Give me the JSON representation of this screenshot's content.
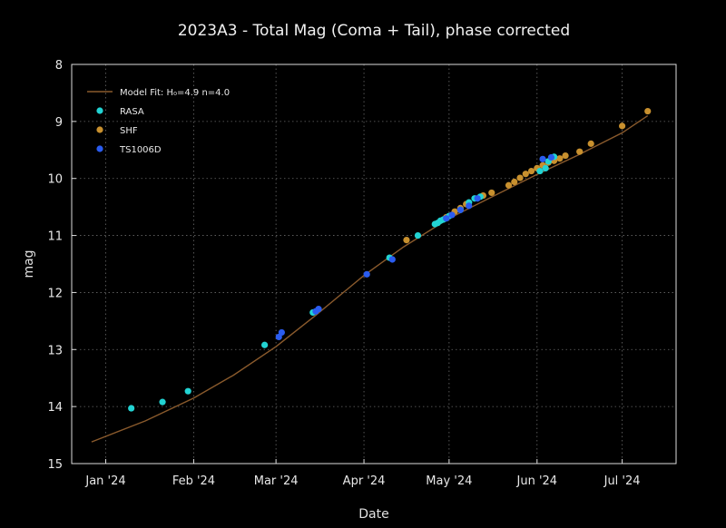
{
  "chart_data": {
    "type": "scatter",
    "title": "2023A3 - Total Mag (Coma + Tail), phase corrected",
    "xlabel": "Date",
    "ylabel": "mag",
    "x_axis_type": "date",
    "xlim": [
      "2023-12-20",
      "2024-07-20"
    ],
    "ylim": [
      15,
      8
    ],
    "y_inverted": true,
    "xticks": [
      {
        "date": "2024-01-01",
        "label": "Jan '24"
      },
      {
        "date": "2024-02-01",
        "label": "Feb '24"
      },
      {
        "date": "2024-03-01",
        "label": "Mar '24"
      },
      {
        "date": "2024-04-01",
        "label": "Apr '24"
      },
      {
        "date": "2024-05-01",
        "label": "May '24"
      },
      {
        "date": "2024-06-01",
        "label": "Jun '24"
      },
      {
        "date": "2024-07-01",
        "label": "Jul '24"
      }
    ],
    "yticks": [
      8,
      9,
      10,
      11,
      12,
      13,
      14,
      15
    ],
    "grid": true,
    "grid_style": "dotted",
    "legend_position": "top-left",
    "colors": {
      "background": "#000000",
      "axes": "#dddddd",
      "grid": "#6a6a6a",
      "model": "#8a5a2c",
      "RASA": "#22d3d3",
      "SHF": "#c8902e",
      "TS1006D": "#2a5cf0"
    },
    "model_fit": {
      "name": "Model Fit: H₀=4.9 n=4.0",
      "x": [
        "2023-12-27",
        "2024-01-15",
        "2024-02-01",
        "2024-02-15",
        "2024-03-01",
        "2024-03-15",
        "2024-04-01",
        "2024-04-15",
        "2024-05-01",
        "2024-05-15",
        "2024-06-01",
        "2024-06-15",
        "2024-07-01",
        "2024-07-10"
      ],
      "y": [
        14.62,
        14.25,
        13.85,
        13.45,
        12.95,
        12.4,
        11.7,
        11.2,
        10.7,
        10.35,
        9.93,
        9.6,
        9.2,
        8.9
      ]
    },
    "series": [
      {
        "name": "RASA",
        "x": [
          "2024-01-10",
          "2024-01-21",
          "2024-01-30",
          "2024-02-26",
          "2024-03-14",
          "2024-04-10",
          "2024-04-20",
          "2024-04-26",
          "2024-04-27",
          "2024-04-28",
          "2024-04-29",
          "2024-05-01",
          "2024-05-05",
          "2024-05-08",
          "2024-05-10",
          "2024-05-12",
          "2024-06-02",
          "2024-06-04",
          "2024-06-05",
          "2024-06-07"
        ],
        "y": [
          14.03,
          13.92,
          13.73,
          12.92,
          12.35,
          11.39,
          11.0,
          10.8,
          10.78,
          10.74,
          10.72,
          10.66,
          10.55,
          10.42,
          10.35,
          10.32,
          9.87,
          9.82,
          9.7,
          9.62
        ]
      },
      {
        "name": "SHF",
        "x": [
          "2024-04-16",
          "2024-04-30",
          "2024-05-03",
          "2024-05-05",
          "2024-05-07",
          "2024-05-13",
          "2024-05-16",
          "2024-05-22",
          "2024-05-24",
          "2024-05-26",
          "2024-05-28",
          "2024-05-30",
          "2024-06-01",
          "2024-06-03",
          "2024-06-05",
          "2024-06-07",
          "2024-06-09",
          "2024-06-11",
          "2024-06-16",
          "2024-06-20",
          "2024-07-01",
          "2024-07-10"
        ],
        "y": [
          11.08,
          10.68,
          10.58,
          10.52,
          10.45,
          10.3,
          10.25,
          10.12,
          10.06,
          9.99,
          9.92,
          9.87,
          9.82,
          9.77,
          9.72,
          9.69,
          9.65,
          9.6,
          9.53,
          9.39,
          9.08,
          8.82
        ]
      },
      {
        "name": "TS1006D",
        "x": [
          "2024-03-02",
          "2024-03-03",
          "2024-03-15",
          "2024-03-16",
          "2024-04-02",
          "2024-04-11",
          "2024-04-30",
          "2024-05-02",
          "2024-05-05",
          "2024-05-08",
          "2024-05-11",
          "2024-06-03",
          "2024-06-06"
        ],
        "y": [
          12.78,
          12.7,
          12.33,
          12.29,
          11.68,
          11.42,
          10.7,
          10.64,
          10.55,
          10.48,
          10.35,
          9.66,
          9.63
        ]
      }
    ]
  }
}
